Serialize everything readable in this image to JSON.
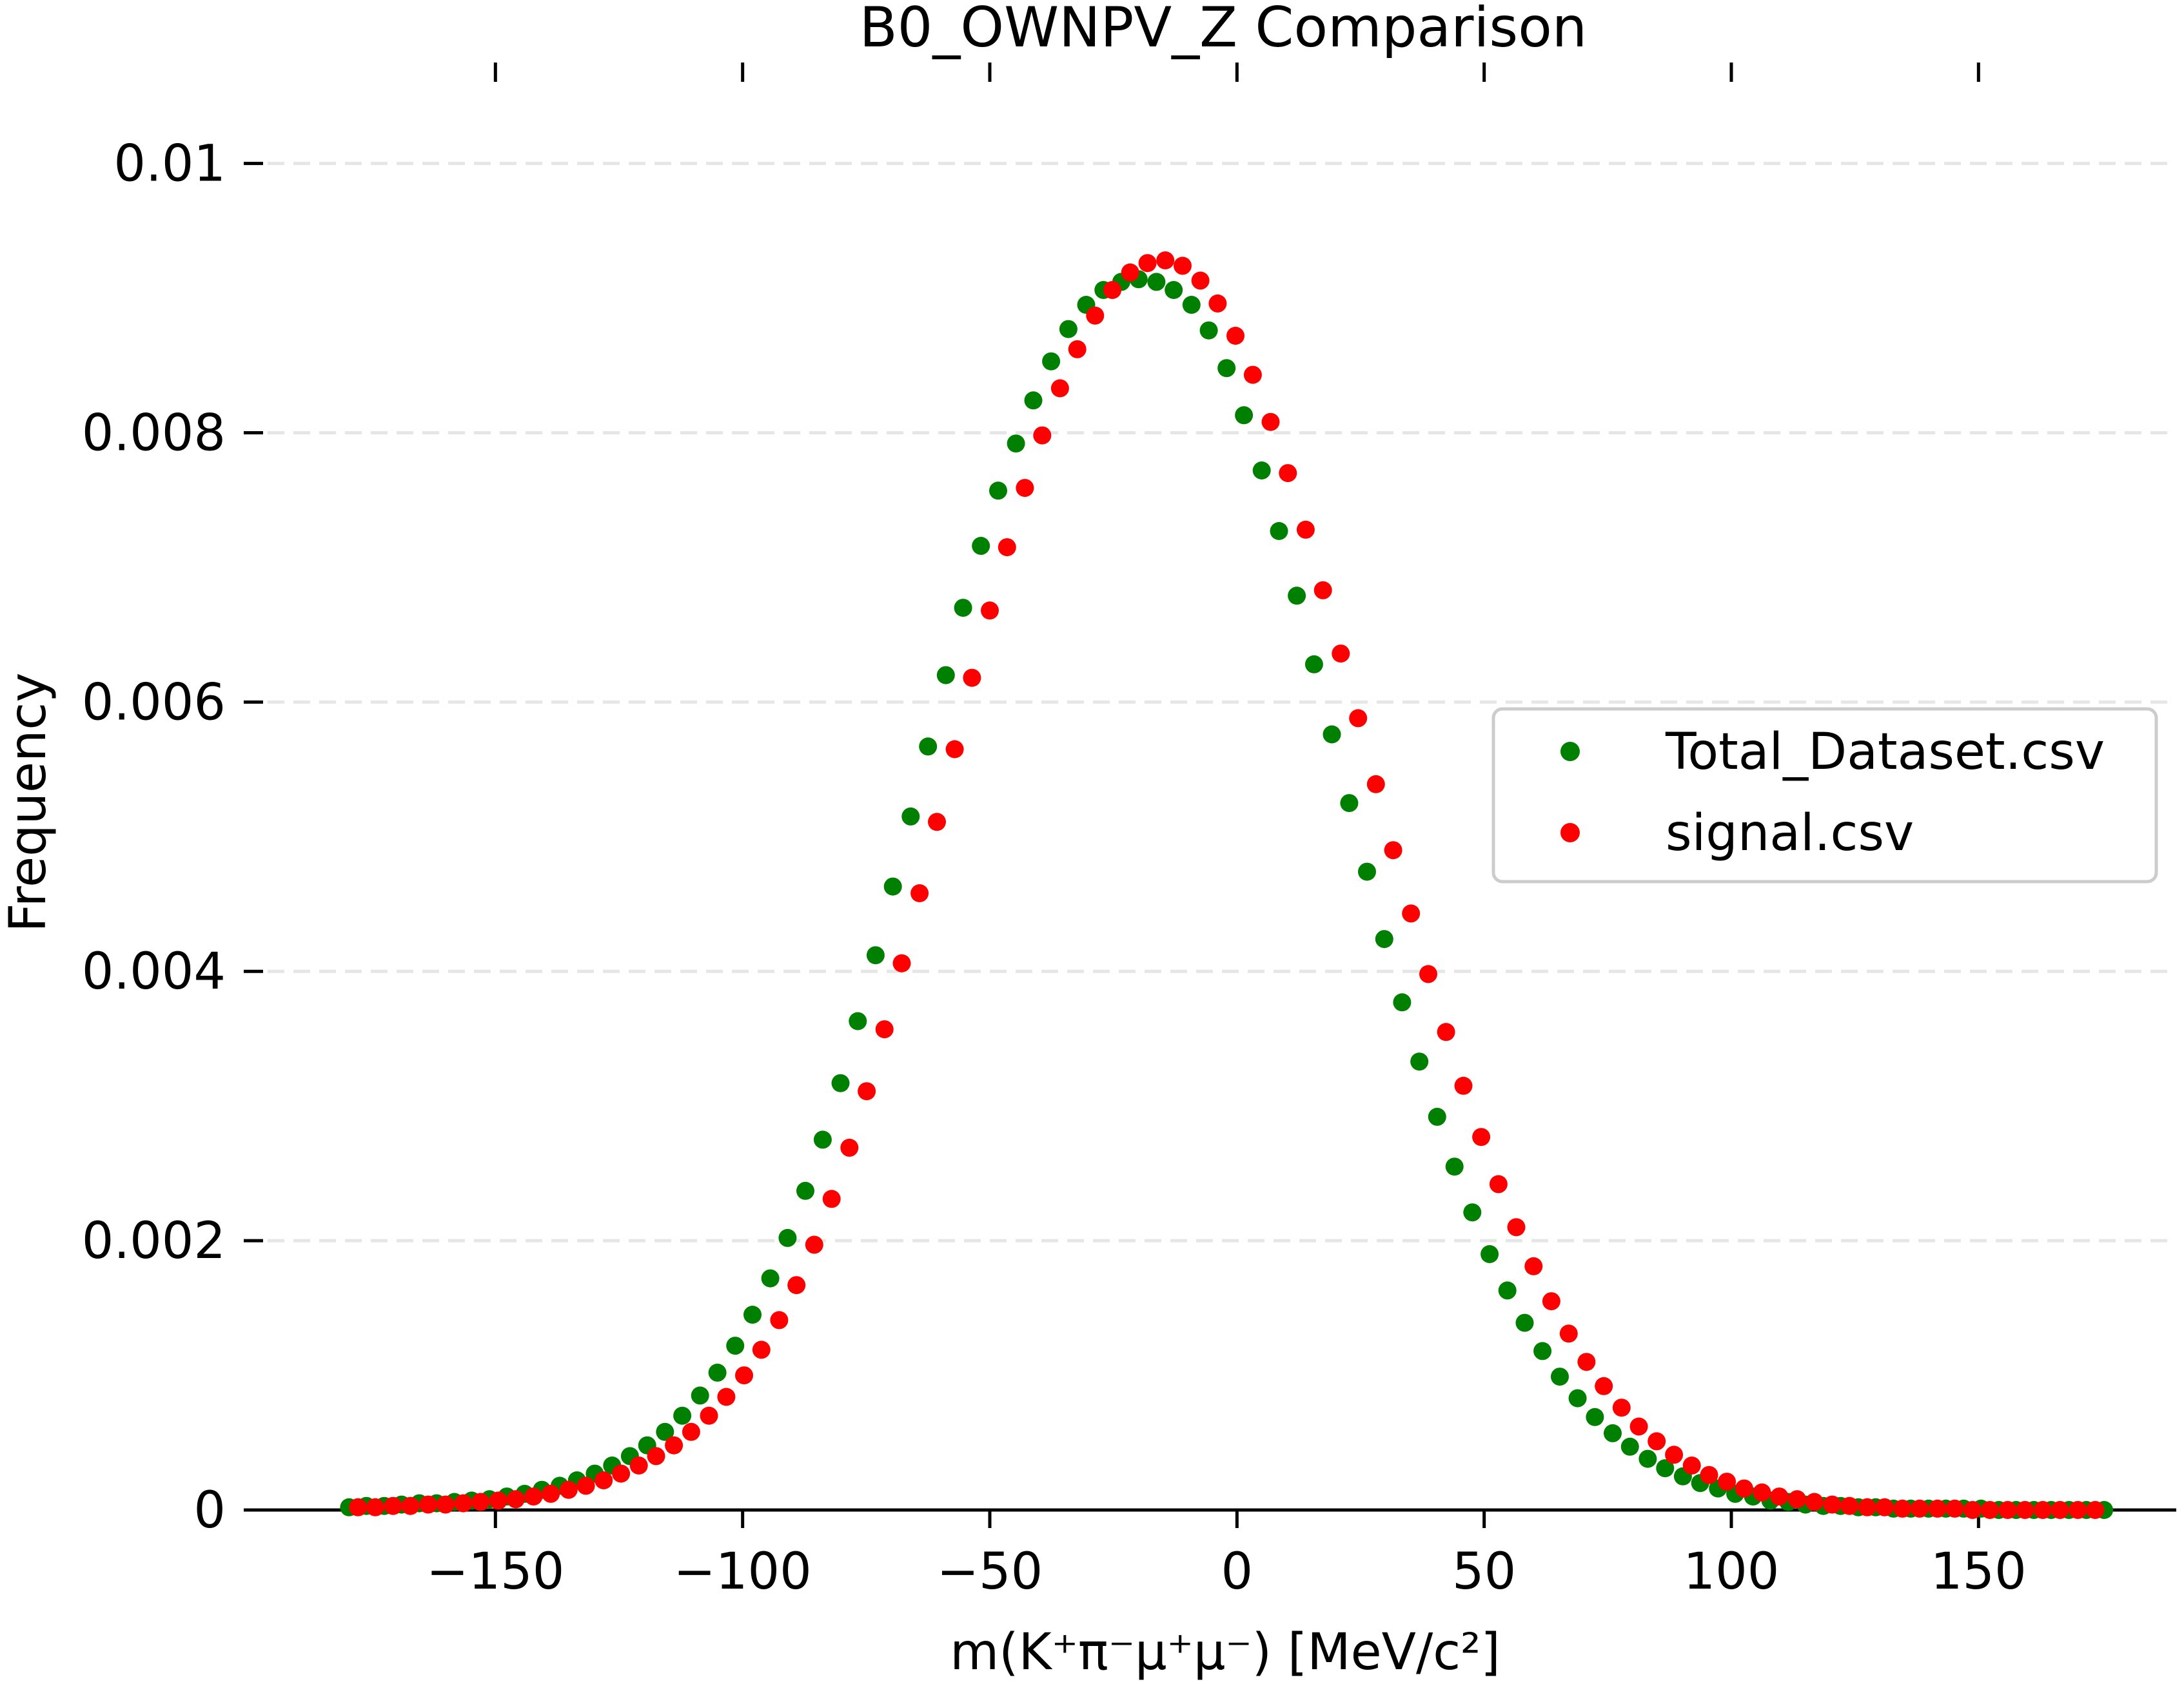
{
  "chart_data": {
    "type": "scatter",
    "title": "B0_OWNPV_Z Comparison",
    "xlabel": "m(K⁺π⁻μ⁺μ⁻) [MeV/c²]",
    "ylabel": "Frequency",
    "xlim": [
      -200,
      190
    ],
    "ylim": [
      0,
      0.0104
    ],
    "x_ticks": [
      -150,
      -100,
      -50,
      0,
      50,
      100,
      150
    ],
    "x_tick_labels": [
      "−150",
      "−100",
      "−50",
      "0",
      "50",
      "100",
      "150"
    ],
    "y_ticks": [
      0,
      0.002,
      0.004,
      0.006,
      0.008,
      0.01
    ],
    "y_tick_labels": [
      "0",
      "0.002",
      "0.004",
      "0.006",
      "0.008",
      "0.01"
    ],
    "grid": "horizontal dashed",
    "legend_position": "center-right",
    "series": [
      {
        "name": "Total_Dataset.csv",
        "color": "#008000",
        "x": [
          -179.6,
          -176.1,
          -172.5,
          -169.0,
          -165.4,
          -161.9,
          -158.3,
          -154.8,
          -151.2,
          -147.7,
          -144.1,
          -140.6,
          -137.0,
          -133.5,
          -129.9,
          -126.4,
          -122.8,
          -119.3,
          -115.7,
          -112.2,
          -108.6,
          -105.1,
          -101.5,
          -98.0,
          -94.4,
          -90.9,
          -87.3,
          -83.8,
          -80.2,
          -76.7,
          -73.1,
          -69.6,
          -66.0,
          -62.5,
          -58.9,
          -55.4,
          -51.8,
          -48.3,
          -44.7,
          -41.2,
          -37.6,
          -34.1,
          -30.5,
          -27.0,
          -23.4,
          -19.9,
          -16.3,
          -12.8,
          -9.2,
          -5.7,
          -2.1,
          1.4,
          5.0,
          8.5,
          12.1,
          15.6,
          19.2,
          22.7,
          26.3,
          29.8,
          33.4,
          36.9,
          40.5,
          44.0,
          47.6,
          51.1,
          54.7,
          58.2,
          61.8,
          65.3,
          68.9,
          72.4,
          76.0,
          79.5,
          83.1,
          86.6,
          90.2,
          93.7,
          97.3,
          100.8,
          104.4,
          107.9,
          111.5,
          115.0,
          118.6,
          122.1,
          125.7,
          129.2,
          132.8,
          136.3,
          139.9,
          143.4,
          147.0,
          150.5,
          154.1,
          157.6,
          161.2,
          164.7,
          168.3,
          171.8,
          175.4
        ],
        "y": [
          2e-05,
          3e-05,
          3e-05,
          4e-05,
          5e-05,
          5e-05,
          6e-05,
          7e-05,
          8e-05,
          0.0001,
          0.00012,
          0.00015,
          0.00018,
          0.00022,
          0.00027,
          0.00033,
          0.0004,
          0.00048,
          0.00058,
          0.0007,
          0.00085,
          0.00102,
          0.00122,
          0.00145,
          0.00172,
          0.00202,
          0.00237,
          0.00275,
          0.00317,
          0.00363,
          0.00412,
          0.00463,
          0.00515,
          0.00567,
          0.0062,
          0.0067,
          0.00716,
          0.00757,
          0.00792,
          0.00824,
          0.00853,
          0.00877,
          0.00895,
          0.00906,
          0.00912,
          0.00914,
          0.00912,
          0.00906,
          0.00895,
          0.00876,
          0.00848,
          0.00813,
          0.00772,
          0.00727,
          0.00679,
          0.00628,
          0.00576,
          0.00525,
          0.00474,
          0.00424,
          0.00377,
          0.00333,
          0.00292,
          0.00255,
          0.00221,
          0.0019,
          0.00163,
          0.00139,
          0.00118,
          0.00099,
          0.00083,
          0.00069,
          0.00057,
          0.00047,
          0.00038,
          0.00031,
          0.00025,
          0.0002,
          0.00016,
          0.00012,
          0.0001,
          7e-05,
          6e-05,
          4e-05,
          3e-05,
          3e-05,
          2e-05,
          2e-05,
          1e-05,
          1e-05,
          1e-05,
          1e-05,
          1e-05,
          1e-05,
          0.0,
          0.0,
          0.0,
          0.0,
          0.0,
          0.0,
          0.0
        ]
      },
      {
        "name": "signal.csv",
        "color": "#ff0000",
        "x": [
          -177.8,
          -174.3,
          -170.7,
          -167.2,
          -163.6,
          -160.1,
          -156.5,
          -153.0,
          -149.4,
          -145.9,
          -142.3,
          -138.8,
          -135.2,
          -131.7,
          -128.1,
          -124.6,
          -121.0,
          -117.5,
          -113.9,
          -110.4,
          -106.8,
          -103.3,
          -99.7,
          -96.2,
          -92.6,
          -89.1,
          -85.5,
          -82.0,
          -78.4,
          -74.9,
          -71.3,
          -67.8,
          -64.2,
          -60.7,
          -57.1,
          -53.6,
          -50.0,
          -46.5,
          -42.9,
          -39.4,
          -35.8,
          -32.3,
          -28.7,
          -25.2,
          -21.6,
          -18.1,
          -14.5,
          -11.0,
          -7.4,
          -3.9,
          -0.3,
          3.2,
          6.8,
          10.3,
          13.9,
          17.4,
          21.0,
          24.5,
          28.1,
          31.6,
          35.2,
          38.7,
          42.3,
          45.8,
          49.4,
          52.9,
          56.5,
          60.0,
          63.6,
          67.1,
          70.7,
          74.2,
          77.8,
          81.3,
          84.9,
          88.4,
          92.0,
          95.5,
          99.1,
          102.6,
          106.2,
          109.7,
          113.3,
          116.8,
          120.4,
          123.9,
          127.5,
          131.0,
          134.6,
          138.1,
          141.7,
          145.2,
          148.8,
          152.3,
          155.9,
          159.4,
          163.0,
          166.5,
          170.1,
          173.6
        ],
        "y": [
          2e-05,
          2e-05,
          3e-05,
          3e-05,
          4e-05,
          4e-05,
          5e-05,
          6e-05,
          7e-05,
          8e-05,
          0.0001,
          0.00012,
          0.00015,
          0.00018,
          0.00022,
          0.00027,
          0.00033,
          0.0004,
          0.00048,
          0.00058,
          0.0007,
          0.00084,
          0.001,
          0.00119,
          0.00141,
          0.00167,
          0.00197,
          0.00231,
          0.00269,
          0.00311,
          0.00357,
          0.00406,
          0.00458,
          0.00511,
          0.00565,
          0.00618,
          0.00668,
          0.00715,
          0.00759,
          0.00798,
          0.00833,
          0.00862,
          0.00887,
          0.00906,
          0.00919,
          0.00926,
          0.00928,
          0.00924,
          0.00913,
          0.00896,
          0.00872,
          0.00843,
          0.00808,
          0.0077,
          0.00728,
          0.00683,
          0.00636,
          0.00588,
          0.00539,
          0.0049,
          0.00443,
          0.00398,
          0.00355,
          0.00315,
          0.00277,
          0.00242,
          0.0021,
          0.00181,
          0.00155,
          0.00131,
          0.0011,
          0.00092,
          0.00076,
          0.00062,
          0.00051,
          0.00041,
          0.00033,
          0.00026,
          0.00021,
          0.00016,
          0.00013,
          0.0001,
          8e-05,
          6e-05,
          4e-05,
          3e-05,
          2e-05,
          2e-05,
          1e-05,
          1e-05,
          1e-05,
          1e-05,
          0.0,
          0.0,
          0.0,
          0.0,
          0.0,
          0.0,
          0.0,
          0.0
        ]
      }
    ]
  }
}
